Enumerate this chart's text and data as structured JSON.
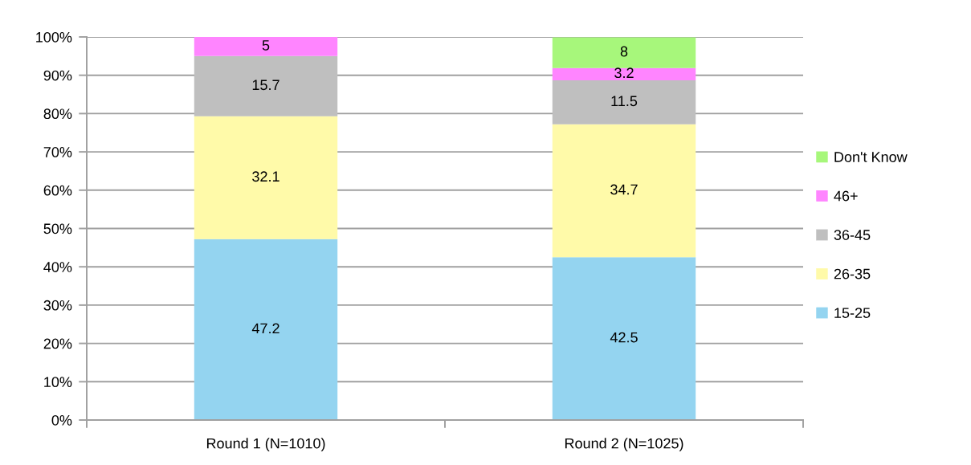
{
  "chart_data": {
    "type": "bar",
    "stacked": true,
    "categories": [
      "Round 1 (N=1010)",
      "Round 2 (N=1025)"
    ],
    "series": [
      {
        "name": "15-25",
        "color": "#94d4f0",
        "values": [
          47.2,
          42.5
        ]
      },
      {
        "name": "26-35",
        "color": "#fffaa9",
        "values": [
          32.1,
          34.7
        ]
      },
      {
        "name": "36-45",
        "color": "#bfbfbf",
        "values": [
          15.7,
          11.5
        ]
      },
      {
        "name": "46+",
        "color": "#ff85ff",
        "values": [
          5,
          3.2
        ]
      },
      {
        "name": "Don't Know",
        "color": "#a7f77b",
        "values": [
          null,
          8
        ]
      }
    ],
    "ylim": [
      0,
      100
    ],
    "yticks": [
      {
        "value": 0,
        "label": "0%"
      },
      {
        "value": 10,
        "label": "10%"
      },
      {
        "value": 20,
        "label": "20%"
      },
      {
        "value": 30,
        "label": "30%"
      },
      {
        "value": 40,
        "label": "40%"
      },
      {
        "value": 50,
        "label": "50%"
      },
      {
        "value": 60,
        "label": "60%"
      },
      {
        "value": 70,
        "label": "70%"
      },
      {
        "value": 80,
        "label": "80%"
      },
      {
        "value": 90,
        "label": "90%"
      },
      {
        "value": 100,
        "label": "100%"
      }
    ],
    "grid": "y",
    "legend": "right",
    "data_labels": true
  }
}
